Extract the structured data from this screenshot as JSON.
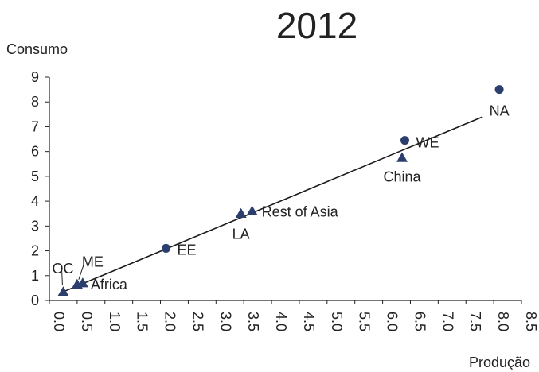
{
  "chart_data": {
    "type": "scatter",
    "title": "2012",
    "xlabel": "Produção",
    "ylabel": "Consumo",
    "xlim": [
      0.0,
      8.5
    ],
    "ylim": [
      0,
      9
    ],
    "x_ticks": [
      "0.0",
      "0.5",
      "1.0",
      "1.5",
      "2.0",
      "2.5",
      "3.0",
      "3.5",
      "4.0",
      "4.5",
      "5.0",
      "5.5",
      "6.0",
      "6.5",
      "7.0",
      "7.5",
      "8.0",
      "8.5"
    ],
    "y_ticks": [
      "0",
      "1",
      "2",
      "3",
      "4",
      "5",
      "6",
      "7",
      "8",
      "9"
    ],
    "grid": false,
    "marker_color": "#2b3e6e",
    "points": [
      {
        "label": "OC",
        "x": 0.25,
        "y": 0.35,
        "marker": "triangle"
      },
      {
        "label": "ME",
        "x": 0.5,
        "y": 0.65,
        "marker": "triangle"
      },
      {
        "label": "Africa",
        "x": 0.6,
        "y": 0.7,
        "marker": "triangle"
      },
      {
        "label": "EE",
        "x": 2.1,
        "y": 2.1,
        "marker": "circle"
      },
      {
        "label": "LA",
        "x": 3.45,
        "y": 3.5,
        "marker": "triangle"
      },
      {
        "label": "Rest of Asia",
        "x": 3.65,
        "y": 3.6,
        "marker": "triangle"
      },
      {
        "label": "China",
        "x": 6.35,
        "y": 5.75,
        "marker": "triangle"
      },
      {
        "label": "WE",
        "x": 6.4,
        "y": 6.45,
        "marker": "circle"
      },
      {
        "label": "NA",
        "x": 8.1,
        "y": 8.5,
        "marker": "circle"
      }
    ],
    "trendline": {
      "x": [
        0.25,
        7.8
      ],
      "y": [
        0.35,
        7.4
      ]
    }
  }
}
